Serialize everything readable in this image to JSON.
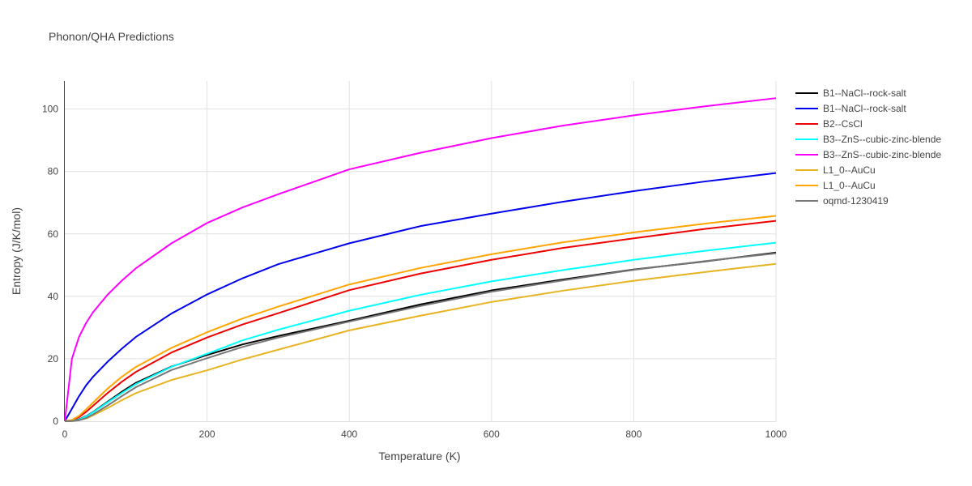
{
  "chart_data": {
    "type": "line",
    "title": "Phonon/QHA Predictions",
    "xlabel": "Temperature (K)",
    "ylabel": "Entropy (J/K/mol)",
    "xlim": [
      0,
      1000
    ],
    "ylim": [
      0,
      109
    ],
    "xticks": [
      0,
      200,
      400,
      600,
      800,
      1000
    ],
    "yticks": [
      0,
      20,
      40,
      60,
      80,
      100
    ],
    "grid": true,
    "legend_position": "right",
    "x": [
      0,
      10,
      20,
      30,
      40,
      60,
      80,
      100,
      150,
      200,
      250,
      300,
      400,
      500,
      600,
      700,
      800,
      900,
      1000
    ],
    "series": [
      {
        "name": "B1--NaCl--rock-salt",
        "color": "#000000",
        "width": 2,
        "values": [
          0,
          0.1,
          0.6,
          1.6,
          3.0,
          6.2,
          9.4,
          12.3,
          17.5,
          21.2,
          24.6,
          27.3,
          32.2,
          37.4,
          41.9,
          45.4,
          48.6,
          51.2,
          54.0
        ]
      },
      {
        "name": "B1--NaCl--rock-salt",
        "color": "#0000ee",
        "width": 2,
        "values": [
          0,
          4.0,
          8.0,
          11.5,
          14.3,
          19.0,
          23.2,
          27.0,
          34.5,
          40.6,
          45.8,
          50.3,
          57.0,
          62.5,
          66.5,
          70.3,
          73.7,
          76.8,
          79.5
        ]
      },
      {
        "name": "B2--CsCl",
        "color": "#ee0000",
        "width": 2,
        "values": [
          0,
          0.3,
          1.3,
          3.0,
          5.0,
          9.0,
          12.6,
          15.8,
          22.0,
          26.8,
          31.0,
          34.6,
          42.0,
          47.3,
          51.7,
          55.5,
          58.6,
          61.6,
          64.2
        ]
      },
      {
        "name": "B3--ZnS--cubic-zinc-blende",
        "color": "#00ffff",
        "width": 2,
        "values": [
          0,
          0.1,
          0.5,
          1.5,
          2.9,
          6.0,
          9.0,
          11.9,
          17.4,
          21.6,
          25.9,
          29.3,
          35.4,
          40.5,
          44.8,
          48.4,
          51.7,
          54.6,
          57.2
        ]
      },
      {
        "name": "B3--ZnS--cubic-zinc-blende",
        "color": "#ff00ff",
        "width": 2,
        "values": [
          0,
          20.0,
          27.0,
          31.5,
          35.0,
          40.5,
          45.0,
          49.0,
          57.0,
          63.5,
          68.5,
          72.7,
          80.7,
          86.0,
          90.7,
          94.7,
          98.0,
          100.9,
          103.5
        ]
      },
      {
        "name": "L1_0--AuCu",
        "color": "#e6b422",
        "width": 2,
        "values": [
          0,
          0.05,
          0.3,
          0.9,
          1.9,
          4.2,
          6.7,
          9.0,
          13.2,
          16.3,
          19.8,
          22.9,
          29.1,
          33.8,
          38.2,
          41.8,
          45.0,
          47.8,
          50.4
        ]
      },
      {
        "name": "L1_0--AuCu",
        "color": "#ffa500",
        "width": 2,
        "values": [
          0,
          0.4,
          1.7,
          3.8,
          6.0,
          10.4,
          14.2,
          17.4,
          23.5,
          28.5,
          32.9,
          36.7,
          43.8,
          49.1,
          53.5,
          57.3,
          60.5,
          63.3,
          65.8
        ]
      },
      {
        "name": "oqmd-1230419",
        "color": "#777777",
        "width": 2,
        "values": [
          0,
          0.05,
          0.3,
          1.0,
          2.2,
          5.0,
          8.0,
          10.9,
          16.4,
          20.2,
          23.8,
          26.8,
          31.9,
          36.9,
          41.5,
          45.1,
          48.5,
          51.3,
          53.8
        ]
      }
    ]
  }
}
